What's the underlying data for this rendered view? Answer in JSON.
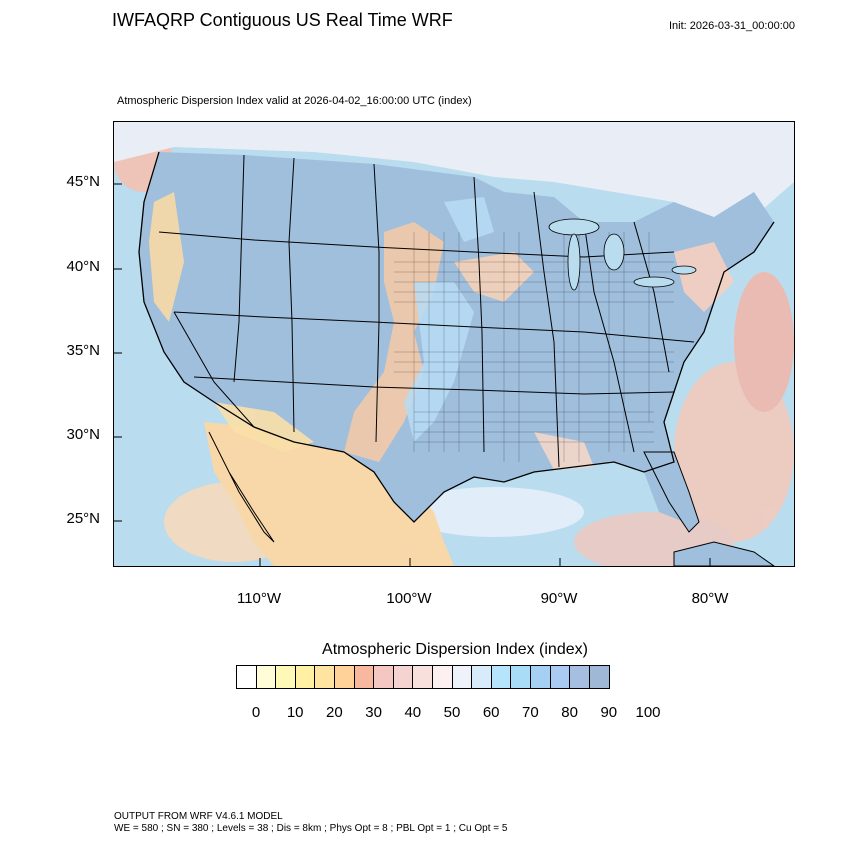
{
  "header": {
    "title": "IWFAQRP Contiguous US Real Time WRF",
    "init": "Init: 2026-03-31_00:00:00",
    "subtitle": "Atmospheric Dispersion Index valid at 2026-04-02_16:00:00 UTC   (index)"
  },
  "map": {
    "lat_labels": [
      "45°N",
      "40°N",
      "35°N",
      "30°N",
      "25°N"
    ],
    "lon_labels": [
      "110°W",
      "100°W",
      "90°W",
      "80°W"
    ],
    "colors": {
      "ocean": "#b9dcef",
      "land_main": "#9fbfdd",
      "land_low": "#f7d9a5",
      "boundary": "#000000"
    }
  },
  "colorbar": {
    "title": "Atmospheric Dispersion Index  (index)",
    "tick_labels": [
      "0",
      "10",
      "20",
      "30",
      "40",
      "50",
      "60",
      "70",
      "80",
      "90",
      "100"
    ],
    "colors": [
      "#ffffff",
      "#fffcd8",
      "#fff9b7",
      "#fff0a4",
      "#ffe3a0",
      "#ffd29a",
      "#f8b8a0",
      "#f4c7c3",
      "#f5d3d0",
      "#f8e1dc",
      "#fcf1f0",
      "#eef3fb",
      "#d7ebfb",
      "#b7e4fd",
      "#a8dcf7",
      "#a6d0f3",
      "#a9caf2",
      "#a6bfe0",
      "#9eb8d6"
    ]
  },
  "footer": {
    "line1": "OUTPUT FROM WRF V4.6.1 MODEL",
    "line2": "WE = 580 ; SN = 380 ; Levels = 38 ; Dis = 8km ; Phys Opt = 8 ; PBL Opt = 1 ; Cu Opt = 5"
  }
}
